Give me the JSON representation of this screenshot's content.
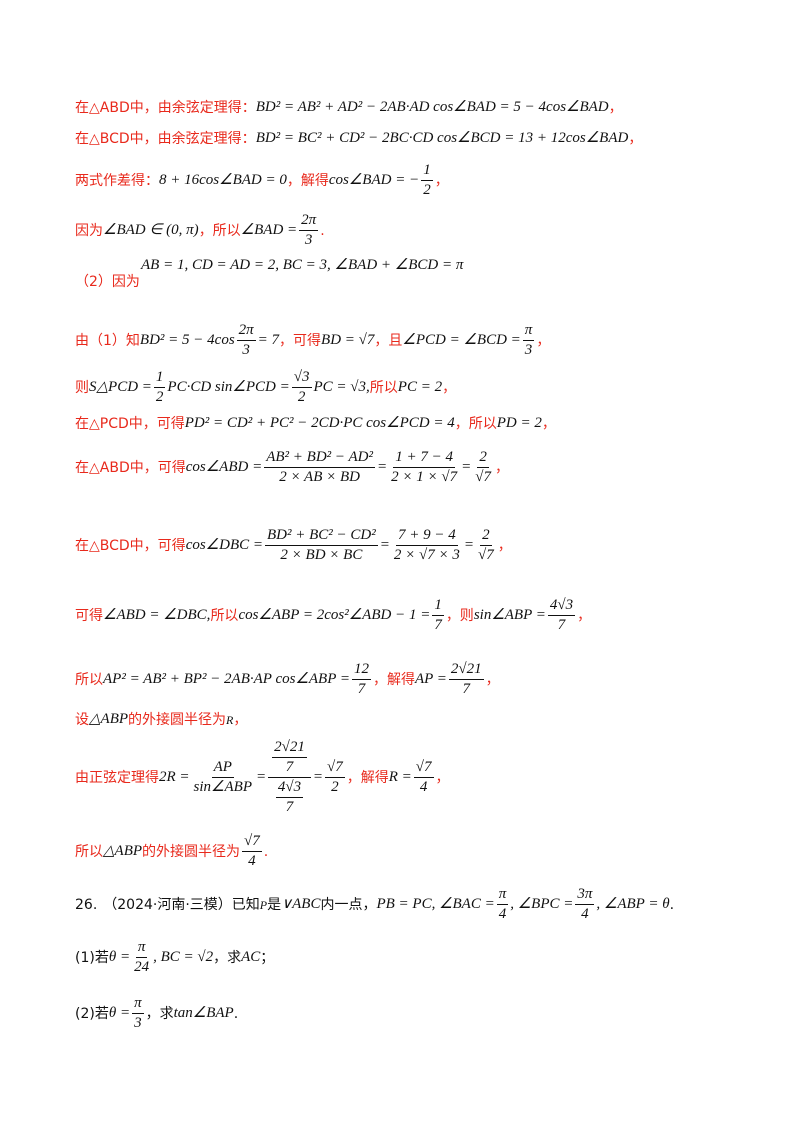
{
  "solution": {
    "l1_pre": "在△ABD中，由余弦定理得：",
    "l1_math": "BD² = AB² + AD² − 2AB·AD cos∠BAD = 5 − 4cos∠BAD",
    "l1_post": "，",
    "l2_pre": "在△BCD中，由余弦定理得：",
    "l2_math": "BD² = BC² + CD² − 2BC·CD cos∠BCD = 13 + 12cos∠BAD",
    "l2_post": "，",
    "l3_pre": "两式作差得：",
    "l3_math1": "8 + 16cos∠BAD = 0",
    "l3_mid": "，解得",
    "l3_math2a": "cos∠BAD = −",
    "l3_num": "1",
    "l3_den": "2",
    "l3_post": "，",
    "l4_pre": "因为",
    "l4_math1": "∠BAD ∈ (0, π)",
    "l4_mid": "，所以",
    "l4_math2a": "∠BAD =",
    "l4_num": "2π",
    "l4_den": "3",
    "l4_post": ".",
    "l5_math": "AB = 1, CD = AD = 2, BC = 3, ∠BAD + ∠BCD = π",
    "l5_pre": "（2）因为",
    "l6_pre": "由（1）知",
    "l6_math1a": "BD² = 5 − 4cos",
    "l6_num1": "2π",
    "l6_den1": "3",
    "l6_math1b": "= 7",
    "l6_mid1": "，可得",
    "l6_math2": "BD = √7",
    "l6_mid2": "，且",
    "l6_math3a": "∠PCD = ∠BCD =",
    "l6_num3": "π",
    "l6_den3": "3",
    "l6_post": "，",
    "l7_pre": "则",
    "l7_math1a": "S△PCD =",
    "l7_num1": "1",
    "l7_den1": "2",
    "l7_math1b": "PC·CD sin∠PCD =",
    "l7_num2": "√3",
    "l7_den2": "2",
    "l7_math1c": "PC = √3,",
    "l7_mid": "所以",
    "l7_math2": "PC = 2",
    "l7_post": "，",
    "l8_pre": "在△PCD中，可得",
    "l8_math1": "PD² = CD² + PC² − 2CD·PC cos∠PCD = 4",
    "l8_mid": "，所以",
    "l8_math2": "PD = 2",
    "l8_post": "，",
    "l9_pre": "在△ABD中，可得",
    "l9_math1": "cos∠ABD =",
    "l9_num1": "AB² + BD² − AD²",
    "l9_den1": "2 × AB × BD",
    "l9_eq1": "=",
    "l9_num2": "1 + 7 − 4",
    "l9_den2": "2 × 1 × √7",
    "l9_eq2": "=",
    "l9_num3": "2",
    "l9_den3": "√7",
    "l9_post": "，",
    "l10_pre": "在△BCD中，可得",
    "l10_math1": "cos∠DBC =",
    "l10_num1": "BD² + BC² − CD²",
    "l10_den1": "2 × BD × BC",
    "l10_eq1": "=",
    "l10_num2": "7 + 9 − 4",
    "l10_den2": "2 × √7 × 3",
    "l10_eq2": "=",
    "l10_num3": "2",
    "l10_den3": "√7",
    "l10_post": "，",
    "l11_pre": "可得",
    "l11_math1": "∠ABD = ∠DBC,",
    "l11_mid1": "所以",
    "l11_math2": "cos∠ABP = 2cos²∠ABD − 1 =",
    "l11_num": "1",
    "l11_den": "7",
    "l11_mid2": "，则",
    "l11_math3": "sin∠ABP =",
    "l11_num3": "4√3",
    "l11_den3": "7",
    "l11_post": "，",
    "l12_pre": "所以",
    "l12_math1": "AP² = AB² + BP² − 2AB·AP cos∠ABP =",
    "l12_num1": "12",
    "l12_den1": "7",
    "l12_mid": "，解得",
    "l12_math2": "AP =",
    "l12_num2": "2√21",
    "l12_den2": "7",
    "l12_post": "，",
    "l13_pre": "设",
    "l13_math1": "△ABP",
    "l13_mid": "的外接圆半径为",
    "l13_math2": "R",
    "l13_post": "，",
    "l14_pre": "由正弦定理得",
    "l14_math1": "2R =",
    "l14_num1": "AP",
    "l14_den1": "sin∠ABP",
    "l14_eq1": "=",
    "l14_cnum": "2√21",
    "l14_cnumd": "7",
    "l14_cden": "4√3",
    "l14_cdend": "7",
    "l14_eq2": "=",
    "l14_num3": "√7",
    "l14_den3": "2",
    "l14_mid": "，解得",
    "l14_math2": "R =",
    "l14_num4": "√7",
    "l14_den4": "4",
    "l14_post": "，",
    "l15_pre": "所以",
    "l15_math": "△ABP",
    "l15_mid": "的外接圆半径为",
    "l15_num": "√7",
    "l15_den": "4",
    "l15_post": "."
  },
  "problem": {
    "number": "26.",
    "source": "（2024·河南·三模）已知",
    "p": "P",
    "is": "是",
    "tri": "∨ABC",
    "inside": "内一点，",
    "cond_a": "PB = PC, ∠BAC =",
    "cond_num1": "π",
    "cond_den1": "4",
    "cond_b": ", ∠BPC =",
    "cond_num2": "3π",
    "cond_den2": "4",
    "cond_c": ", ∠ABP = θ",
    "cond_end": ".",
    "q1_pre": "(1)若",
    "q1_math_a": "θ =",
    "q1_num": "π",
    "q1_den": "24",
    "q1_math_b": ", BC = √2",
    "q1_mid": "，求",
    "q1_target": "AC",
    "q1_post": "；",
    "q2_pre": "(2)若",
    "q2_math_a": "θ =",
    "q2_num": "π",
    "q2_den": "3",
    "q2_mid": "，求",
    "q2_target": "tan∠BAP",
    "q2_post": "."
  }
}
